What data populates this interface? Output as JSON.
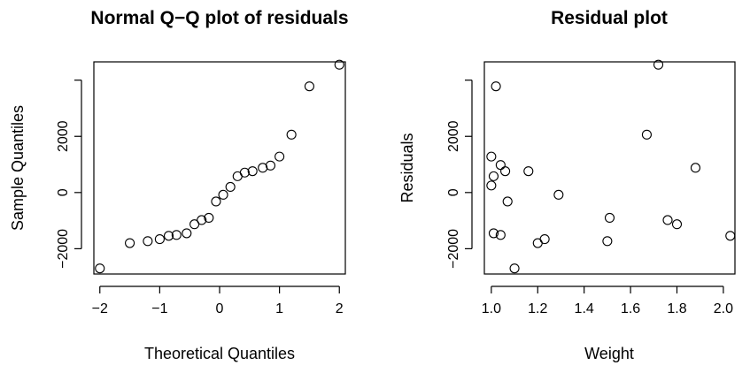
{
  "chart_data": [
    {
      "type": "scatter",
      "title": "Normal Q−Q plot of residuals",
      "xlabel": "Theoretical Quantiles",
      "ylabel": "Sample Quantiles",
      "xlim": [
        -2.1,
        2.1
      ],
      "ylim": [
        -2900,
        4650
      ],
      "xticks": [
        -2,
        -1,
        0,
        1,
        2
      ],
      "xtick_labels": [
        "−2",
        "−1",
        "0",
        "1",
        "2"
      ],
      "yticks": [
        -2000,
        0,
        2000,
        4000
      ],
      "ytick_labels": [
        "−2000",
        "0",
        "2000",
        ""
      ],
      "marker": "open-circle",
      "series": [
        {
          "x": [
            -2.0,
            -1.5,
            -1.2,
            -1.0,
            -0.85,
            -0.72,
            -0.55,
            -0.42,
            -0.3,
            -0.18,
            -0.06,
            0.06,
            0.18,
            0.3,
            0.42,
            0.55,
            0.72,
            0.85,
            1.0,
            1.2,
            1.5,
            2.0
          ],
          "y": [
            -2700,
            -1800,
            -1730,
            -1660,
            -1540,
            -1510,
            -1450,
            -1130,
            -980,
            -900,
            -320,
            -80,
            200,
            580,
            710,
            760,
            880,
            960,
            1280,
            2060,
            3780,
            4550
          ]
        }
      ]
    },
    {
      "type": "scatter",
      "title": "Residual plot",
      "xlabel": "Weight",
      "ylabel": "Residuals",
      "xlim": [
        0.97,
        2.05
      ],
      "ylim": [
        -2900,
        4650
      ],
      "xticks": [
        1.0,
        1.2,
        1.4,
        1.6,
        1.8,
        2.0
      ],
      "xtick_labels": [
        "1.0",
        "1.2",
        "1.4",
        "1.6",
        "1.8",
        "2.0"
      ],
      "yticks": [
        -2000,
        0,
        2000,
        4000
      ],
      "ytick_labels": [
        "−2000",
        "0",
        "2000",
        ""
      ],
      "marker": "open-circle",
      "series": [
        {
          "x": [
            1.0,
            1.0,
            1.01,
            1.02,
            1.04,
            1.06,
            1.01,
            1.04,
            1.07,
            1.1,
            1.16,
            1.2,
            1.23,
            1.29,
            1.5,
            1.51,
            1.67,
            1.72,
            1.76,
            1.8,
            1.88,
            2.03
          ],
          "y": [
            1280,
            250,
            580,
            3780,
            980,
            760,
            -1450,
            -1510,
            -320,
            -2700,
            760,
            -1800,
            -1660,
            -80,
            -1730,
            -900,
            2060,
            4550,
            -980,
            -1130,
            880,
            -1540
          ]
        }
      ]
    }
  ]
}
